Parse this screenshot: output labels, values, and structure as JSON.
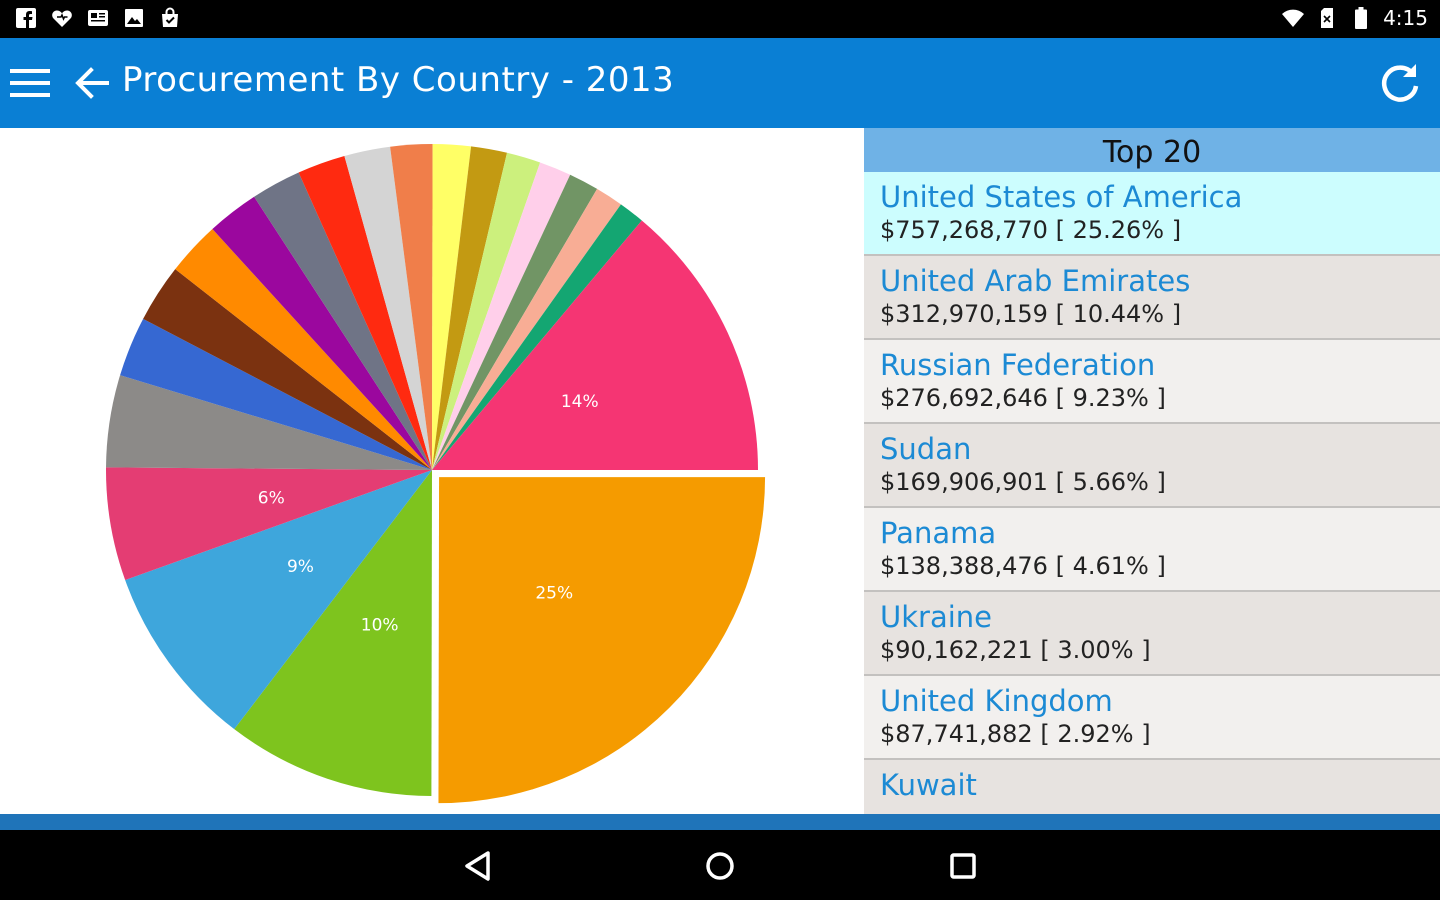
{
  "status": {
    "time": "4:15"
  },
  "appbar": {
    "title": "Procurement By Country - 2013",
    "color": "#0a7fd4"
  },
  "sidebar": {
    "header": "Top 20",
    "rows": [
      {
        "country": "United States of America",
        "amount": "$757,268,770",
        "percent": "[ 25.26% ]",
        "selected": true
      },
      {
        "country": "United Arab Emirates",
        "amount": "$312,970,159",
        "percent": "[ 10.44% ]",
        "selected": false
      },
      {
        "country": "Russian Federation",
        "amount": "$276,692,646",
        "percent": "[ 9.23% ]",
        "selected": false
      },
      {
        "country": "Sudan",
        "amount": "$169,906,901",
        "percent": "[ 5.66% ]",
        "selected": false
      },
      {
        "country": "Panama",
        "amount": "$138,388,476",
        "percent": "[ 4.61% ]",
        "selected": false
      },
      {
        "country": "Ukraine",
        "amount": "$90,162,221",
        "percent": "[ 3.00% ]",
        "selected": false
      },
      {
        "country": "United Kingdom",
        "amount": "$87,741,882",
        "percent": "[ 2.92% ]",
        "selected": false
      },
      {
        "country": "Kuwait",
        "amount": "",
        "percent": "",
        "selected": false
      }
    ]
  },
  "chart_data": {
    "type": "pie",
    "explodedIndex": 0,
    "slices": [
      {
        "value": 25.26,
        "color": "#f59b00",
        "label": "25%"
      },
      {
        "value": 10.44,
        "color": "#7ec41e",
        "label": "10%"
      },
      {
        "value": 9.23,
        "color": "#3ea6dc",
        "label": "9%"
      },
      {
        "value": 5.66,
        "color": "#e43d73",
        "label": "6%"
      },
      {
        "value": 4.61,
        "color": "#8c8a88",
        "label": ""
      },
      {
        "value": 3.0,
        "color": "#3668d2",
        "label": ""
      },
      {
        "value": 2.92,
        "color": "#7b3210",
        "label": ""
      },
      {
        "value": 2.7,
        "color": "#ff8a00",
        "label": ""
      },
      {
        "value": 2.6,
        "color": "#9b079e",
        "label": ""
      },
      {
        "value": 2.5,
        "color": "#6f7486",
        "label": ""
      },
      {
        "value": 2.4,
        "color": "#ff2a10",
        "label": ""
      },
      {
        "value": 2.3,
        "color": "#d4d4d4",
        "label": ""
      },
      {
        "value": 2.1,
        "color": "#f07e4a",
        "label": ""
      },
      {
        "value": 1.9,
        "color": "#ffff66",
        "label": ""
      },
      {
        "value": 1.8,
        "color": "#c39a12",
        "label": ""
      },
      {
        "value": 1.7,
        "color": "#ccf07d",
        "label": ""
      },
      {
        "value": 1.6,
        "color": "#ffcfea",
        "label": ""
      },
      {
        "value": 1.5,
        "color": "#719565",
        "label": ""
      },
      {
        "value": 1.4,
        "color": "#f8ad95",
        "label": ""
      },
      {
        "value": 1.3,
        "color": "#14a672",
        "label": ""
      },
      {
        "value": 14.0,
        "color": "#f53573",
        "label": "14%"
      }
    ]
  }
}
